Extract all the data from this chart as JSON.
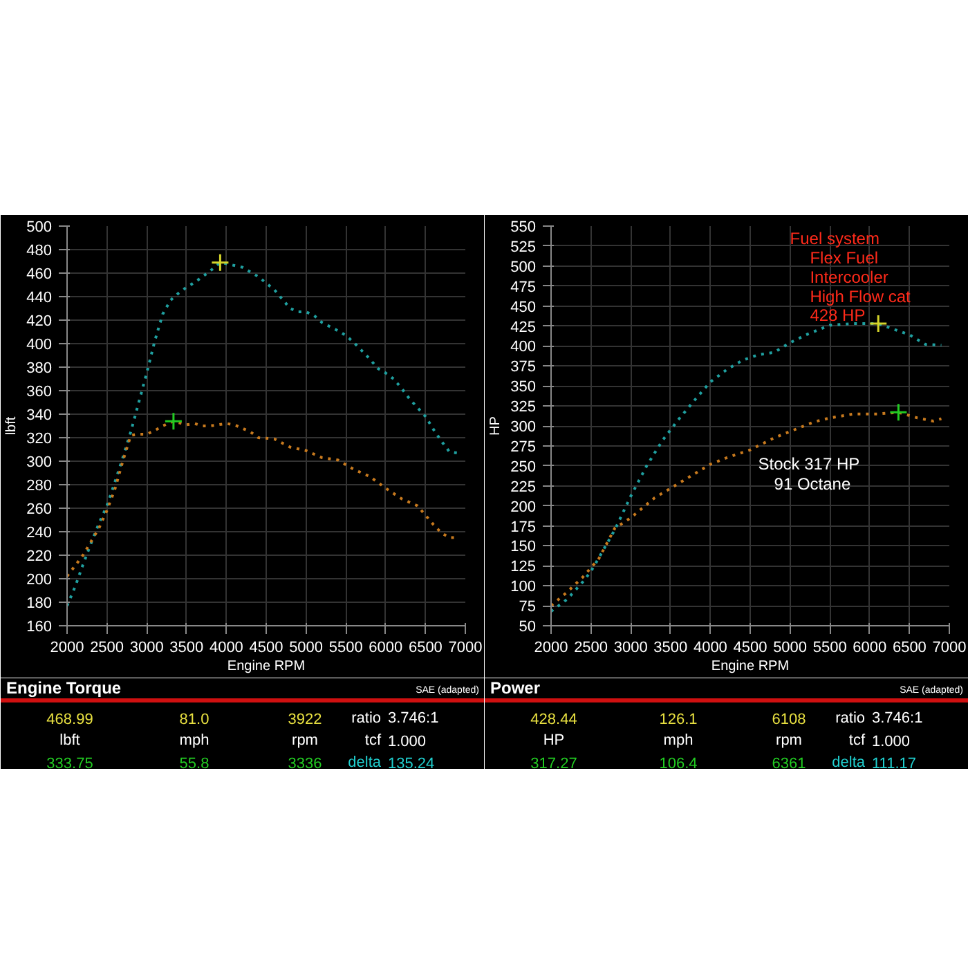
{
  "chart_data": [
    {
      "type": "line",
      "title": "Engine Torque",
      "xlabel": "Engine RPM",
      "ylabel": "lbft",
      "xlim": [
        2000,
        7000
      ],
      "ylim": [
        160,
        500
      ],
      "xticks": [
        2000,
        2500,
        3000,
        3500,
        4000,
        4500,
        5000,
        5500,
        6000,
        6500,
        7000
      ],
      "yticks": [
        160,
        180,
        200,
        220,
        240,
        260,
        280,
        300,
        320,
        340,
        360,
        380,
        400,
        420,
        440,
        460,
        480,
        500
      ],
      "grid": true,
      "line_style": "dotted",
      "series": [
        {
          "color": "#1fa0a0",
          "x": [
            2000,
            2100,
            2200,
            2300,
            2400,
            2500,
            2600,
            2700,
            2800,
            2900,
            3000,
            3100,
            3200,
            3300,
            3400,
            3500,
            3600,
            3700,
            3800,
            3922,
            4000,
            4200,
            4400,
            4600,
            4800,
            4900,
            5000,
            5100,
            5200,
            5400,
            5500,
            5600,
            5800,
            5900,
            6000,
            6100,
            6200,
            6300,
            6500,
            6600,
            6700,
            6800,
            6900
          ],
          "values": [
            177,
            193,
            212,
            230,
            247,
            262,
            282,
            303,
            325,
            350,
            375,
            402,
            425,
            437,
            443,
            448,
            452,
            457,
            462,
            469,
            468,
            465,
            457,
            446,
            430,
            427,
            427,
            424,
            418,
            411,
            407,
            401,
            387,
            379,
            375,
            370,
            362,
            353,
            338,
            327,
            317,
            308,
            307
          ]
        },
        {
          "color": "#c87a1e",
          "x": [
            2000,
            2200,
            2400,
            2500,
            2600,
            2700,
            2800,
            2900,
            3000,
            3100,
            3200,
            3336,
            3500,
            3600,
            3700,
            3800,
            4000,
            4100,
            4300,
            4400,
            4600,
            4800,
            5000,
            5200,
            5400,
            5600,
            5800,
            6000,
            6200,
            6400,
            6500,
            6600,
            6700,
            6800,
            6900
          ],
          "values": [
            202,
            220,
            243,
            258,
            276,
            300,
            322,
            323,
            323,
            326,
            330,
            334,
            331,
            332,
            330,
            330,
            332,
            331,
            325,
            320,
            319,
            312,
            309,
            303,
            301,
            293,
            287,
            277,
            268,
            262,
            254,
            246,
            239,
            235,
            235
          ]
        },
        {
          "type": "scatter",
          "marker": "cross",
          "color": "#d4d42a",
          "x": [
            3922
          ],
          "values": [
            469
          ]
        },
        {
          "type": "scatter",
          "marker": "cross",
          "color": "#22cc22",
          "x": [
            3336
          ],
          "values": [
            334
          ]
        }
      ],
      "annotations": [
        "468.99",
        "81.0",
        "3922",
        "ratio",
        "3.746:1",
        "lbft",
        "mph",
        "rpm",
        "tcf",
        "1.000",
        "333.75",
        "55.8",
        "3336",
        "delta",
        "135.24",
        "SAE (adapted)"
      ]
    },
    {
      "type": "line",
      "title": "Power",
      "xlabel": "Engine RPM",
      "ylabel": "HP",
      "xlim": [
        2000,
        7000
      ],
      "ylim": [
        50,
        550
      ],
      "xticks": [
        2000,
        2500,
        3000,
        3500,
        4000,
        4500,
        5000,
        5500,
        6000,
        6500,
        7000
      ],
      "yticks": [
        50,
        75,
        100,
        125,
        150,
        175,
        200,
        225,
        250,
        275,
        300,
        325,
        350,
        375,
        400,
        425,
        450,
        475,
        500,
        525,
        550
      ],
      "grid": true,
      "line_style": "dotted",
      "series": [
        {
          "color": "#1fa0a0",
          "x": [
            2000,
            2200,
            2400,
            2500,
            2600,
            2800,
            3000,
            3200,
            3400,
            3600,
            3800,
            4000,
            4200,
            4400,
            4600,
            4800,
            5000,
            5200,
            5500,
            5800,
            6108,
            6300,
            6500,
            6700,
            6900
          ],
          "values": [
            68,
            83,
            105,
            118,
            135,
            170,
            212,
            250,
            282,
            308,
            332,
            355,
            370,
            382,
            389,
            392,
            404,
            414,
            426,
            428,
            428,
            421,
            414,
            402,
            401
          ]
        },
        {
          "color": "#c87a1e",
          "x": [
            2000,
            2200,
            2400,
            2600,
            2800,
            3000,
            3300,
            3600,
            4000,
            4200,
            4500,
            4800,
            5000,
            5300,
            5500,
            5800,
            6100,
            6361,
            6600,
            6800,
            6900
          ],
          "values": [
            75,
            92,
            111,
            134,
            172,
            185,
            210,
            228,
            252,
            260,
            270,
            285,
            293,
            305,
            310,
            315,
            315,
            317,
            310,
            306,
            309
          ]
        },
        {
          "type": "scatter",
          "marker": "cross",
          "color": "#d4d42a",
          "x": [
            6108
          ],
          "values": [
            428
          ]
        },
        {
          "type": "scatter",
          "marker": "cross",
          "color": "#22cc22",
          "x": [
            6361
          ],
          "values": [
            317
          ]
        }
      ],
      "annotations": [
        "428.44",
        "126.1",
        "6108",
        "ratio",
        "3.746:1",
        "HP",
        "mph",
        "rpm",
        "tcf",
        "1.000",
        "317.27",
        "106.4",
        "6361",
        "delta",
        "111.17",
        "SAE (adapted)",
        "Fuel system",
        "Flex Fuel",
        "Intercooler",
        "High Flow cat",
        "428 HP",
        "Stock 317 HP",
        "91 Octane"
      ]
    }
  ]
}
